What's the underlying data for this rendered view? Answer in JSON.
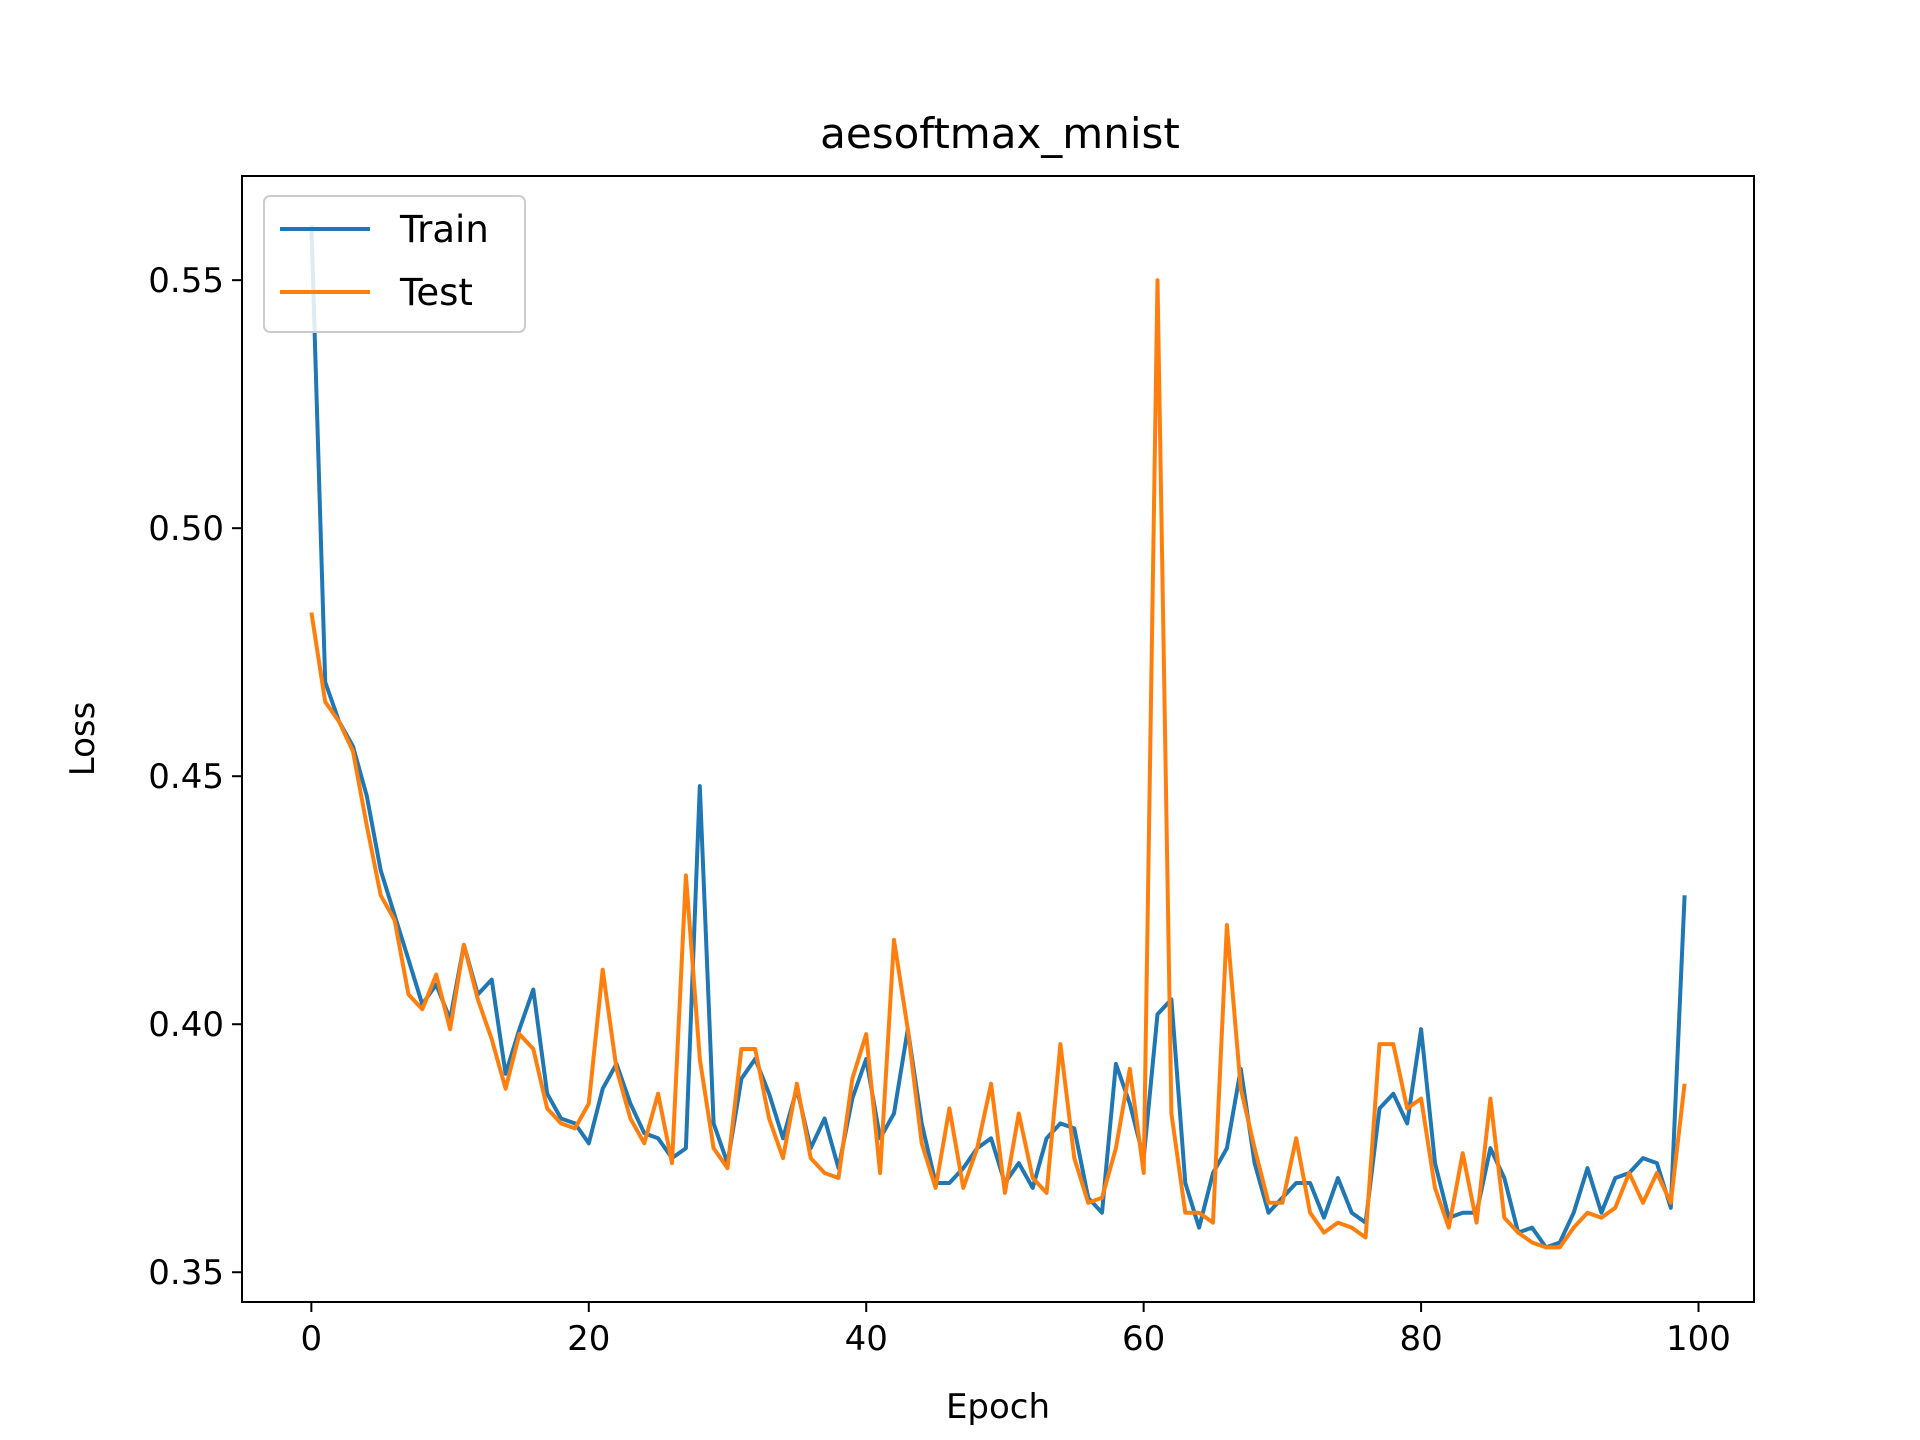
{
  "chart_data": {
    "type": "line",
    "title": "aesoftmax_mnist",
    "xlabel": "Epoch",
    "ylabel": "Loss",
    "xlim": [
      -5,
      104
    ],
    "ylim": [
      0.344,
      0.571
    ],
    "xticks": [
      0,
      20,
      40,
      60,
      80,
      100
    ],
    "yticks": [
      0.35,
      0.4,
      0.45,
      0.5,
      0.55
    ],
    "xtick_labels": [
      "0",
      "20",
      "40",
      "60",
      "80",
      "100"
    ],
    "ytick_labels": [
      "0.35",
      "0.40",
      "0.45",
      "0.50",
      "0.55"
    ],
    "grid": false,
    "legend_position": "upper-left",
    "series": [
      {
        "name": "Train",
        "color": "#1f77b4",
        "values": [
          0.561,
          0.469,
          0.461,
          0.456,
          0.446,
          0.431,
          0.422,
          0.413,
          0.404,
          0.408,
          0.401,
          0.416,
          0.406,
          0.409,
          0.39,
          0.399,
          0.407,
          0.386,
          0.381,
          0.38,
          0.376,
          0.387,
          0.392,
          0.384,
          0.378,
          0.377,
          0.373,
          0.375,
          0.448,
          0.38,
          0.372,
          0.389,
          0.393,
          0.386,
          0.377,
          0.387,
          0.375,
          0.381,
          0.371,
          0.385,
          0.393,
          0.377,
          0.382,
          0.399,
          0.38,
          0.368,
          0.368,
          0.371,
          0.375,
          0.377,
          0.368,
          0.372,
          0.367,
          0.377,
          0.38,
          0.379,
          0.365,
          0.362,
          0.392,
          0.384,
          0.373,
          0.402,
          0.405,
          0.368,
          0.359,
          0.37,
          0.375,
          0.391,
          0.372,
          0.362,
          0.365,
          0.368,
          0.368,
          0.361,
          0.369,
          0.362,
          0.36,
          0.383,
          0.386,
          0.38,
          0.399,
          0.372,
          0.361,
          0.362,
          0.362,
          0.375,
          0.369,
          0.358,
          0.359,
          0.355,
          0.356,
          0.362,
          0.371,
          0.362,
          0.369,
          0.37,
          0.373,
          0.372,
          0.363,
          0.426
        ]
      },
      {
        "name": "Test",
        "color": "#ff7f0e",
        "values": [
          0.483,
          0.465,
          0.461,
          0.455,
          0.44,
          0.426,
          0.421,
          0.406,
          0.403,
          0.41,
          0.399,
          0.416,
          0.405,
          0.397,
          0.387,
          0.398,
          0.395,
          0.383,
          0.38,
          0.379,
          0.384,
          0.411,
          0.391,
          0.381,
          0.376,
          0.386,
          0.372,
          0.43,
          0.393,
          0.375,
          0.371,
          0.395,
          0.395,
          0.381,
          0.373,
          0.388,
          0.373,
          0.37,
          0.369,
          0.389,
          0.398,
          0.37,
          0.417,
          0.399,
          0.376,
          0.367,
          0.383,
          0.367,
          0.375,
          0.388,
          0.366,
          0.382,
          0.369,
          0.366,
          0.396,
          0.373,
          0.364,
          0.365,
          0.375,
          0.391,
          0.37,
          0.55,
          0.382,
          0.362,
          0.362,
          0.36,
          0.42,
          0.387,
          0.375,
          0.364,
          0.364,
          0.377,
          0.362,
          0.358,
          0.36,
          0.359,
          0.357,
          0.396,
          0.396,
          0.383,
          0.385,
          0.367,
          0.359,
          0.374,
          0.36,
          0.385,
          0.361,
          0.358,
          0.356,
          0.355,
          0.355,
          0.359,
          0.362,
          0.361,
          0.363,
          0.37,
          0.364,
          0.37,
          0.364,
          0.388
        ]
      }
    ]
  }
}
